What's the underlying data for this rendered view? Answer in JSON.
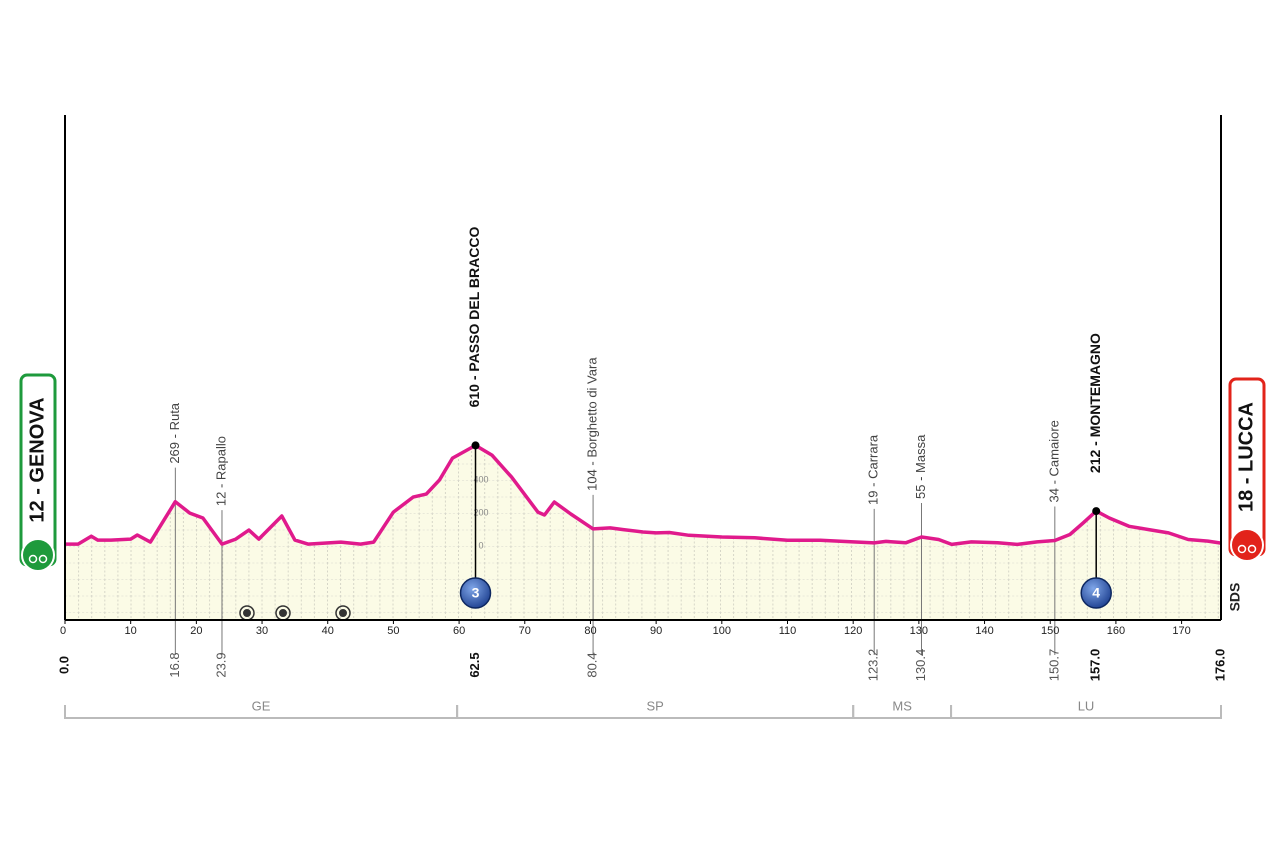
{
  "chart_data": {
    "type": "area",
    "color": "#e01a8c",
    "x": [
      0,
      2,
      4,
      5,
      7,
      10,
      11,
      13,
      16.8,
      19,
      21,
      23.9,
      26,
      28,
      29.5,
      33,
      35,
      37,
      42,
      45,
      47,
      50,
      53,
      55,
      57,
      59,
      62.5,
      65,
      68,
      72,
      73,
      74.5,
      77,
      80.4,
      83,
      85,
      88,
      90,
      92,
      95,
      100,
      105,
      110,
      115,
      120,
      123.2,
      125,
      128,
      130.4,
      133,
      135,
      138,
      142,
      145,
      148,
      150.7,
      153,
      155,
      157,
      159,
      162,
      165,
      168,
      171,
      174,
      176
    ],
    "values": [
      12,
      12,
      60,
      36,
      36,
      42,
      67,
      24,
      269,
      200,
      170,
      12,
      42,
      97,
      42,
      182,
      36,
      12,
      24,
      12,
      24,
      206,
      297,
      315,
      400,
      533,
      610,
      551,
      418,
      206,
      188,
      267,
      194,
      104,
      110,
      100,
      85,
      80,
      82,
      65,
      55,
      50,
      35,
      35,
      25,
      19,
      28,
      20,
      55,
      40,
      10,
      25,
      20,
      10,
      25,
      34,
      70,
      140,
      212,
      170,
      120,
      100,
      80,
      40,
      30,
      18
    ],
    "xlim": [
      0,
      176
    ],
    "xticks": [
      0,
      10,
      20,
      30,
      40,
      50,
      60,
      70,
      80,
      90,
      100,
      110,
      120,
      130,
      140,
      150,
      160,
      170
    ],
    "ylim": [
      -448,
      2612
    ],
    "yticks": [
      0,
      200,
      400
    ],
    "start": {
      "name": "12 - GENOVA",
      "km": {
        "value": 0,
        "label": "0.0"
      }
    },
    "finish": {
      "name": "18 - LUCCA",
      "km": {
        "value": 176,
        "label": "176.0"
      }
    },
    "places": [
      {
        "name": "269 - Ruta",
        "km": 16.8
      },
      {
        "name": "12 - Rapallo",
        "km": 23.9
      },
      {
        "name": "104 - Borghetto di Vara",
        "km": 80.4
      },
      {
        "name": "19 - Carrara",
        "km": 123.2
      },
      {
        "name": "55 - Massa",
        "km": 130.4
      },
      {
        "name": "34 - Camaiore",
        "km": 150.7
      }
    ],
    "climbs": [
      {
        "name": "610 - PASSO DEL BRACCO",
        "km": 62.5,
        "category": 3
      },
      {
        "name": "212 - MONTEMAGNO",
        "km": {
          "value": 157,
          "label": "157.0"
        },
        "category": 4
      }
    ],
    "provinces": [
      {
        "name": "GE",
        "from": 0,
        "to": 59.7
      },
      {
        "name": "SP",
        "from": 59.7,
        "to": 120
      },
      {
        "name": "MS",
        "from": 120,
        "to": 134.9
      },
      {
        "name": "LU",
        "from": 134.9,
        "to": 176
      }
    ],
    "logo": "SDS"
  }
}
